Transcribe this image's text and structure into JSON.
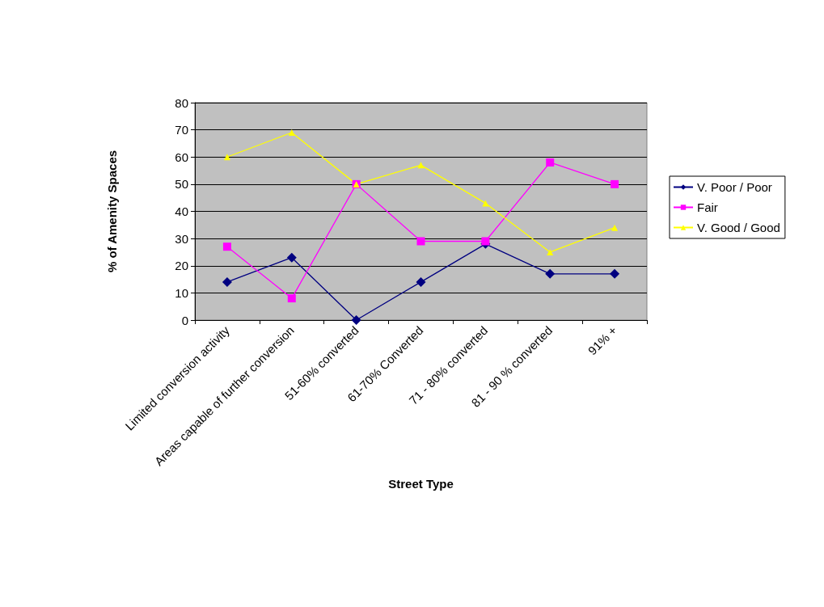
{
  "chart_data": {
    "type": "line",
    "xlabel": "Street Type",
    "ylabel": "% of Amenity Spaces",
    "categories": [
      "Limited conversion activity",
      "Areas capable of further conversion",
      "51-60% converted",
      "61-70% Converted",
      "71 - 80% converted",
      "81 - 90 % converted",
      "91% +"
    ],
    "series": [
      {
        "name": "V. Poor / Poor",
        "color": "#000080",
        "marker": "diamond",
        "values": [
          14,
          23,
          0,
          14,
          28,
          17,
          17
        ]
      },
      {
        "name": "Fair",
        "color": "#ff00ff",
        "marker": "square",
        "values": [
          27,
          8,
          50,
          29,
          29,
          58,
          50
        ]
      },
      {
        "name": "V. Good / Good",
        "color": "#ffff00",
        "marker": "triangle",
        "values": [
          60,
          69,
          50,
          57,
          43,
          25,
          34
        ]
      }
    ],
    "ylim": [
      0,
      80
    ],
    "yticks": [
      0,
      10,
      20,
      30,
      40,
      50,
      60,
      70,
      80
    ],
    "grid": "y",
    "legend": "right",
    "line_style": "solid"
  }
}
